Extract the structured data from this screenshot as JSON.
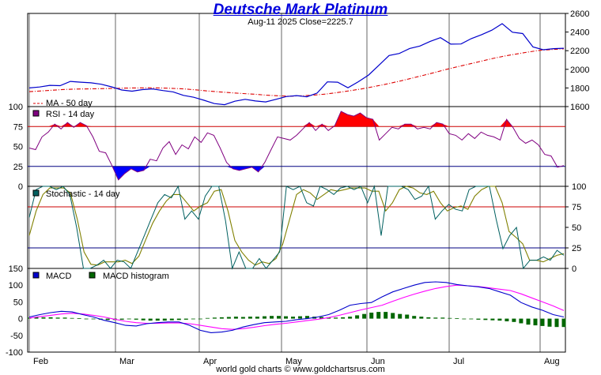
{
  "chart_data": [
    {
      "type": "line",
      "title": "Deutsche Mark Platinum",
      "subtitle": "Aug-11  2025   Close=2225.7",
      "x_ticks": [
        "Feb",
        "Mar",
        "Apr",
        "May",
        "Jun",
        "Jul",
        "Aug"
      ],
      "x_range": [
        "Jan-27 2025",
        "Aug-11 2025"
      ],
      "ylim": [
        1600,
        2600
      ],
      "y_ticks": [
        1600,
        1800,
        2000,
        2200,
        2400,
        2600
      ],
      "legend": [
        "MA - 50 day"
      ],
      "colors": {
        "price": "#0000cc",
        "ma": "#dd0000"
      },
      "series": [
        {
          "key": "price",
          "values": [
            1800,
            1810,
            1828,
            1825,
            1870,
            1862,
            1855,
            1840,
            1812,
            1778,
            1765,
            1782,
            1790,
            1772,
            1758,
            1720,
            1700,
            1668,
            1632,
            1620,
            1658,
            1678,
            1660,
            1650,
            1678,
            1708,
            1718,
            1705,
            1745,
            1865,
            1862,
            1802,
            1866,
            1938,
            2042,
            2148,
            2170,
            2224,
            2250,
            2300,
            2340,
            2270,
            2272,
            2330,
            2372,
            2420,
            2490,
            2398,
            2384,
            2240,
            2210,
            2222,
            2226
          ]
        },
        {
          "key": "ma",
          "name": "MA - 50 day",
          "values": [
            1760,
            1768,
            1776,
            1784,
            1788,
            1790,
            1792,
            1795,
            1798,
            1800,
            1802,
            1800,
            1796,
            1790,
            1780,
            1768,
            1758,
            1748,
            1740,
            1732,
            1722,
            1715,
            1712,
            1716,
            1724,
            1735,
            1752,
            1770,
            1790,
            1814,
            1840,
            1868,
            1898,
            1930,
            1962,
            1996,
            2026,
            2056,
            2086,
            2116,
            2142,
            2164,
            2186,
            2204,
            2212,
            2220
          ]
        }
      ]
    },
    {
      "type": "line",
      "title": "",
      "ylim": [
        0,
        100
      ],
      "y_ticks": [
        0,
        25,
        50,
        75,
        100
      ],
      "legend": [
        "RSI - 14 day"
      ],
      "reference_lines": [
        75,
        25
      ],
      "colors": {
        "rsi": "#800080",
        "overbought": "#ff0000",
        "oversold": "#0000ff"
      },
      "series": [
        {
          "key": "rsi",
          "name": "RSI - 14 day",
          "values": [
            48,
            46,
            62,
            68,
            78,
            72,
            80,
            74,
            80,
            76,
            62,
            44,
            42,
            26,
            8,
            16,
            22,
            18,
            20,
            34,
            32,
            48,
            56,
            40,
            52,
            47,
            62,
            55,
            67,
            64,
            48,
            30,
            22,
            20,
            22,
            24,
            18,
            30,
            46,
            62,
            60,
            58,
            64,
            72,
            80,
            70,
            78,
            70,
            76,
            94,
            90,
            88,
            92,
            86,
            84,
            58,
            66,
            74,
            72,
            78,
            78,
            72,
            74,
            72,
            80,
            78,
            66,
            64,
            58,
            66,
            60,
            68,
            64,
            62,
            58,
            84,
            74,
            60,
            54,
            58,
            52,
            40,
            38,
            24,
            26
          ]
        }
      ]
    },
    {
      "type": "line",
      "title": "",
      "ylim": [
        0,
        100
      ],
      "y_ticks": [
        0,
        25,
        50,
        75,
        100
      ],
      "legend": [
        "Stochastic - 14 day"
      ],
      "reference_lines": [
        75,
        25
      ],
      "colors": {
        "fast": "#006060",
        "slow": "#808000"
      },
      "series": [
        {
          "key": "fast",
          "name": "Stochastic - 14 day",
          "values": [
            62,
            96,
            100,
            100,
            96,
            100,
            90,
            50,
            0,
            0,
            4,
            10,
            0,
            10,
            8,
            0,
            20,
            40,
            60,
            80,
            90,
            86,
            100,
            60,
            70,
            60,
            88,
            100,
            100,
            58,
            0,
            20,
            0,
            0,
            12,
            0,
            10,
            20,
            100,
            96,
            100,
            80,
            76,
            100,
            96,
            90,
            98,
            100,
            96,
            100,
            80,
            100,
            40,
            100,
            100,
            100,
            96,
            84,
            88,
            100,
            60,
            70,
            78,
            72,
            70,
            96,
            100,
            100,
            100,
            60,
            24,
            40,
            50,
            0,
            10,
            10,
            14,
            10,
            22,
            16
          ]
        },
        {
          "key": "slow",
          "values": [
            40,
            70,
            90,
            98,
            98,
            98,
            92,
            60,
            20,
            5,
            4,
            8,
            8,
            8,
            10,
            6,
            15,
            35,
            55,
            70,
            82,
            90,
            90,
            80,
            70,
            76,
            80,
            94,
            96,
            70,
            34,
            20,
            10,
            4,
            8,
            6,
            12,
            30,
            60,
            90,
            96,
            92,
            84,
            90,
            96,
            94,
            96,
            98,
            98,
            98,
            94,
            94,
            70,
            80,
            96,
            100,
            98,
            92,
            90,
            94,
            80,
            70,
            74,
            76,
            72,
            88,
            96,
            100,
            100,
            80,
            45,
            38,
            30,
            10,
            10,
            8,
            12,
            16,
            18
          ]
        }
      ]
    },
    {
      "type": "bar",
      "title": "",
      "ylim": [
        -100,
        150
      ],
      "y_ticks": [
        -100,
        -50,
        0,
        50,
        100,
        150
      ],
      "legend": [
        "MACD",
        "MACD histogram"
      ],
      "colors": {
        "macd": "#0000cc",
        "signal": "#ff00ff",
        "hist": "#006600"
      },
      "series": [
        {
          "key": "macd",
          "name": "MACD",
          "values": [
            5,
            12,
            18,
            22,
            20,
            12,
            5,
            -5,
            -12,
            -20,
            -22,
            -15,
            -12,
            -10,
            -10,
            -20,
            -35,
            -42,
            -40,
            -35,
            -25,
            -18,
            -12,
            -10,
            -8,
            -3,
            0,
            5,
            12,
            25,
            40,
            45,
            48,
            65,
            80,
            90,
            100,
            108,
            110,
            108,
            102,
            98,
            95,
            90,
            80,
            70,
            48,
            35,
            25,
            12,
            5
          ]
        },
        {
          "key": "signal",
          "values": [
            2,
            6,
            10,
            14,
            16,
            14,
            10,
            5,
            -2,
            -8,
            -12,
            -14,
            -14,
            -13,
            -13,
            -15,
            -20,
            -25,
            -30,
            -32,
            -30,
            -26,
            -21,
            -17,
            -14,
            -10,
            -6,
            -2,
            3,
            10,
            18,
            26,
            33,
            40,
            52,
            63,
            73,
            82,
            90,
            96,
            100,
            98,
            96,
            92,
            88,
            84,
            74,
            62,
            50,
            38,
            24
          ]
        },
        {
          "key": "hist",
          "name": "MACD histogram",
          "values": [
            3,
            4,
            4,
            4,
            3,
            3,
            2,
            1,
            -1,
            -2,
            -3,
            -4,
            -4,
            -3,
            -2,
            -3,
            -5,
            -6,
            -6,
            -6,
            -5,
            -4,
            -3,
            -2,
            -1,
            2,
            3,
            4,
            5,
            6,
            5,
            6,
            6,
            7,
            8,
            8,
            7,
            6,
            7,
            8,
            6,
            5,
            4,
            3,
            4,
            6,
            10,
            14,
            18,
            20,
            20,
            17,
            14,
            12,
            8,
            6,
            4,
            3,
            3,
            2,
            1,
            0,
            -2,
            -3,
            -4,
            -5,
            -6,
            -8,
            -10,
            -14,
            -18,
            -20,
            -22,
            -24,
            -25,
            -25
          ]
        }
      ]
    }
  ],
  "footer": {
    "credit": "world gold charts © www.goldchartsrus.com"
  }
}
